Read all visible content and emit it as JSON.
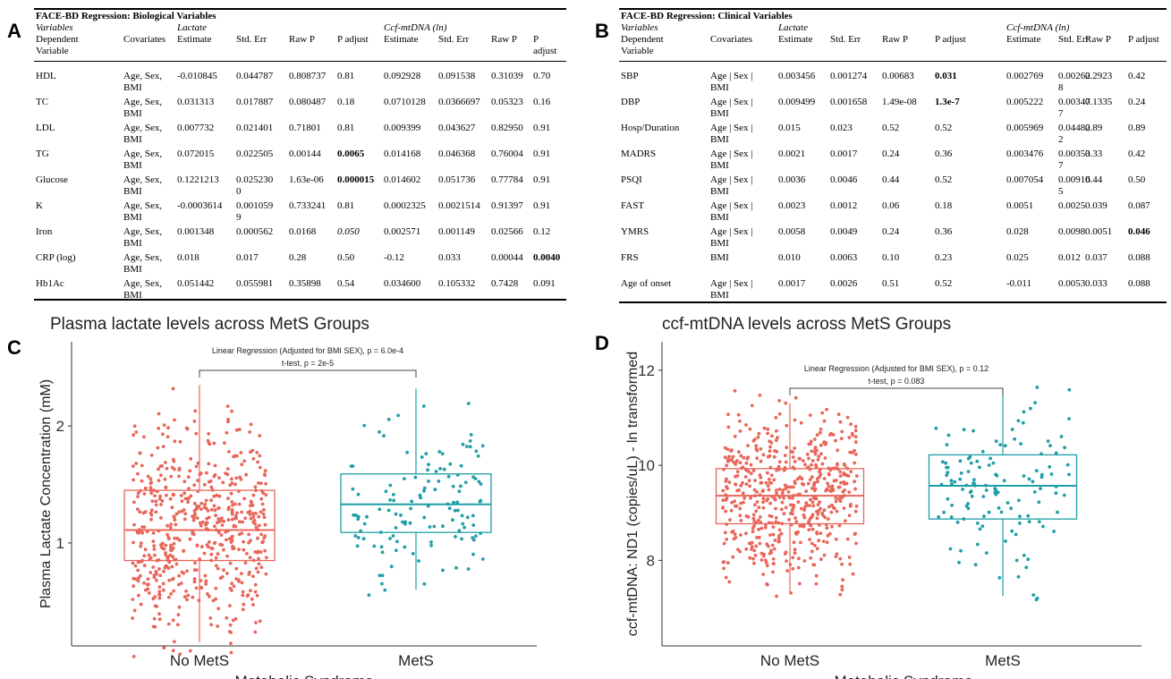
{
  "panels": [
    "A",
    "B",
    "C",
    "D"
  ],
  "tableA": {
    "title": "FACE-BD Regression: Biological Variables",
    "header": {
      "variables": "Variables",
      "dependent": [
        "Dependent",
        "Variable"
      ],
      "covariates": "Covariates",
      "group1": "Lactate",
      "group2": "Ccf-mtDNA (ln)",
      "estimate": "Estimate",
      "std_err": "Std. Err",
      "raw_p": "Raw P",
      "p_adjust": "P adjust",
      "p_adjust_split": [
        "P",
        "adjust"
      ]
    },
    "rows": [
      {
        "var": "HDL",
        "cov": [
          "Age, Sex,",
          "BMI"
        ],
        "c": [
          [
            "-0.010845"
          ],
          [
            "0.044787"
          ],
          [
            "0.808737"
          ],
          [
            "0.81"
          ],
          [
            "0.092928"
          ],
          [
            "0.091538"
          ],
          [
            "0.31039"
          ],
          [
            "0.70"
          ]
        ],
        "bold": [],
        "italic": []
      },
      {
        "var": "TC",
        "cov": [
          "Age, Sex,",
          "BMI"
        ],
        "c": [
          [
            "0.031313"
          ],
          [
            "0.017887"
          ],
          [
            "0.080487"
          ],
          [
            "0.18"
          ],
          [
            "0.0710128"
          ],
          [
            "0.0366697"
          ],
          [
            "0.05323"
          ],
          [
            "0.16"
          ]
        ],
        "bold": [],
        "italic": []
      },
      {
        "var": "LDL",
        "cov": [
          "Age, Sex,",
          "BMI"
        ],
        "c": [
          [
            "0.007732"
          ],
          [
            "0.021401"
          ],
          [
            "0.71801"
          ],
          [
            "0.81"
          ],
          [
            "0.009399"
          ],
          [
            "0.043627"
          ],
          [
            "0.82950"
          ],
          [
            "0.91"
          ]
        ],
        "bold": [],
        "italic": []
      },
      {
        "var": "TG",
        "cov": [
          "Age, Sex,",
          "BMI"
        ],
        "c": [
          [
            "0.072015"
          ],
          [
            "0.022505"
          ],
          [
            "0.00144"
          ],
          [
            "0.0065"
          ],
          [
            "0.014168"
          ],
          [
            "0.046368"
          ],
          [
            "0.76004"
          ],
          [
            "0.91"
          ]
        ],
        "bold": [
          3
        ],
        "italic": []
      },
      {
        "var": "Glucose",
        "cov": [
          "Age, Sex,",
          "BMI"
        ],
        "c": [
          [
            "0.1221213"
          ],
          [
            "0.025230",
            "0"
          ],
          [
            "1.63e-06"
          ],
          [
            "0.000015"
          ],
          [
            "0.014602"
          ],
          [
            "0.051736"
          ],
          [
            "0.77784"
          ],
          [
            "0.91"
          ]
        ],
        "bold": [
          3
        ],
        "italic": []
      },
      {
        "var": "K",
        "cov": [
          "Age, Sex,",
          "BMI"
        ],
        "c": [
          [
            "-0.0003614"
          ],
          [
            "0.001059",
            "9"
          ],
          [
            "0.733241"
          ],
          [
            "0.81"
          ],
          [
            "0.0002325"
          ],
          [
            "0.0021514"
          ],
          [
            "0.91397"
          ],
          [
            "0.91"
          ]
        ],
        "bold": [],
        "italic": []
      },
      {
        "var": "Iron",
        "cov": [
          "Age, Sex,",
          "BMI"
        ],
        "c": [
          [
            "0.001348"
          ],
          [
            "0.000562"
          ],
          [
            "0.0168"
          ],
          [
            "0.050"
          ],
          [
            "0.002571"
          ],
          [
            "0.001149"
          ],
          [
            "0.02566"
          ],
          [
            "0.12"
          ]
        ],
        "bold": [],
        "italic": [
          3
        ]
      },
      {
        "var": "CRP (log)",
        "cov": [
          "Age, Sex,",
          "BMI"
        ],
        "c": [
          [
            "0.018"
          ],
          [
            "0.017"
          ],
          [
            "0.28"
          ],
          [
            "0.50"
          ],
          [
            "-0.12"
          ],
          [
            "0.033"
          ],
          [
            "0.00044"
          ],
          [
            "0.0040"
          ]
        ],
        "bold": [
          7
        ],
        "italic": []
      },
      {
        "var": "Hb1Ac",
        "cov": [
          "Age, Sex,",
          "BMI"
        ],
        "c": [
          [
            "0.051442"
          ],
          [
            "0.055981"
          ],
          [
            "0.35898"
          ],
          [
            "0.54"
          ],
          [
            "0.034600"
          ],
          [
            "0.105332"
          ],
          [
            "0.7428"
          ],
          [
            "0.091"
          ]
        ],
        "bold": [],
        "italic": []
      }
    ]
  },
  "tableB": {
    "title": "FACE-BD Regression: Clinical Variables",
    "header": {
      "variables": "Variables",
      "dependent": [
        "Dependent",
        "Variable"
      ],
      "covariates": "Covariates",
      "group1": "Lactate",
      "group2": "Ccf-mtDNA (ln)",
      "estimate": "Estimate",
      "std_err": "Std. Err",
      "raw_p": "Raw P",
      "p_adjust": "P adjust"
    },
    "rows": [
      {
        "var": "SBP",
        "cov": [
          "Age | Sex |",
          "BMI"
        ],
        "c": [
          [
            "0.003456"
          ],
          [
            "0.001274"
          ],
          [
            "0.00683"
          ],
          [
            "0.031"
          ],
          [
            "0.002769"
          ],
          [
            "0.00262",
            "8"
          ],
          [
            "0.2923"
          ],
          [
            "0.42"
          ]
        ],
        "bold": [
          3
        ],
        "italic": []
      },
      {
        "var": "DBP",
        "cov": [
          "Age | Sex |",
          "BMI"
        ],
        "c": [
          [
            "0.009499"
          ],
          [
            "0.001658"
          ],
          [
            "1.49e-08"
          ],
          [
            "1.3e-7"
          ],
          [
            "0.005222"
          ],
          [
            "0.00347",
            "7"
          ],
          [
            "0.1335"
          ],
          [
            "0.24"
          ]
        ],
        "bold": [
          3
        ],
        "italic": []
      },
      {
        "var": "Hosp/Duration",
        "cov": [
          "Age | Sex |",
          "BMI"
        ],
        "c": [
          [
            "0.015"
          ],
          [
            "0.023"
          ],
          [
            "0.52"
          ],
          [
            "0.52"
          ],
          [
            "0.005969"
          ],
          [
            "0.04482",
            "2"
          ],
          [
            "0.89"
          ],
          [
            "0.89"
          ]
        ],
        "bold": [],
        "italic": []
      },
      {
        "var": "MADRS",
        "cov": [
          "Age | Sex |",
          "BMI"
        ],
        "c": [
          [
            "0.0021"
          ],
          [
            "0.0017"
          ],
          [
            "0.24"
          ],
          [
            "0.36"
          ],
          [
            "0.003476"
          ],
          [
            "0.00353",
            "7"
          ],
          [
            "0.33"
          ],
          [
            "0.42"
          ]
        ],
        "bold": [],
        "italic": []
      },
      {
        "var": "PSQI",
        "cov": [
          "Age | Sex |",
          "BMI"
        ],
        "c": [
          [
            "0.0036"
          ],
          [
            "0.0046"
          ],
          [
            "0.44"
          ],
          [
            "0.52"
          ],
          [
            "0.007054"
          ],
          [
            "0.00916",
            "5"
          ],
          [
            "0.44"
          ],
          [
            "0.50"
          ]
        ],
        "bold": [],
        "italic": []
      },
      {
        "var": "FAST",
        "cov": [
          "Age | Sex |",
          "BMI"
        ],
        "c": [
          [
            "0.0023"
          ],
          [
            "0.0012"
          ],
          [
            "0.06"
          ],
          [
            "0.18"
          ],
          [
            "0.0051"
          ],
          [
            "0.0025"
          ],
          [
            "0.039"
          ],
          [
            "0.087"
          ]
        ],
        "bold": [],
        "italic": []
      },
      {
        "var": "YMRS",
        "cov": [
          "Age | Sex |",
          "BMI"
        ],
        "c": [
          [
            "0.0058"
          ],
          [
            "0.0049"
          ],
          [
            "0.24"
          ],
          [
            "0.36"
          ],
          [
            "0.028"
          ],
          [
            "0.0098"
          ],
          [
            "0.0051"
          ],
          [
            "0.046"
          ]
        ],
        "bold": [
          7
        ],
        "italic": []
      },
      {
        "var": "FRS",
        "cov": [
          "BMI"
        ],
        "c": [
          [
            "0.010"
          ],
          [
            "0.0063"
          ],
          [
            "0.10"
          ],
          [
            "0.23"
          ],
          [
            "0.025"
          ],
          [
            "0.012"
          ],
          [
            "0.037"
          ],
          [
            "0.088"
          ]
        ],
        "bold": [],
        "italic": []
      },
      {
        "var": "Age of onset",
        "cov": [
          "Age | Sex |",
          "BMI"
        ],
        "c": [
          [
            "0.0017"
          ],
          [
            "0.0026"
          ],
          [
            "0.51"
          ],
          [
            "0.52"
          ],
          [
            "-0.011"
          ],
          [
            "0.0053"
          ],
          [
            "0.033"
          ],
          [
            "0.088"
          ]
        ],
        "bold": [],
        "italic": []
      }
    ]
  },
  "chart_data": [
    {
      "type": "box",
      "panel": "C",
      "title": "Plasma lactate levels across MetS Groups",
      "xlabel": "Metabolic Syndrome",
      "ylabel": "Plasma Lactate Concentration (mM)",
      "categories": [
        "No MetS",
        "MetS"
      ],
      "colors": [
        "#e8665a",
        "#1f9ea6"
      ],
      "ylim": [
        0.12,
        2.72
      ],
      "yticks": [
        1,
        2
      ],
      "boxes": [
        {
          "category": "No MetS",
          "q1": 0.85,
          "median": 1.11,
          "q3": 1.45,
          "whisker_low": 0.15,
          "whisker_high": 2.35,
          "n": 560
        },
        {
          "category": "MetS",
          "q1": 1.09,
          "median": 1.33,
          "q3": 1.59,
          "whisker_low": 0.6,
          "whisker_high": 2.32,
          "n": 130
        }
      ],
      "annotation": [
        "Linear Regression (Adjusted for BMI SEX), p = 6.0e-4",
        "t-test, p = 2e-5"
      ]
    },
    {
      "type": "box",
      "panel": "D",
      "title": "ccf-mtDNA levels across MetS Groups",
      "xlabel": "Metabolic Syndrome",
      "ylabel": "ccf-mtDNA: ND1 (copies/uL) - ln transformed",
      "categories": [
        "No MetS",
        "MetS"
      ],
      "colors": [
        "#e8665a",
        "#1f9ea6"
      ],
      "ylim": [
        6.2,
        12.6
      ],
      "yticks": [
        8,
        10,
        12
      ],
      "boxes": [
        {
          "category": "No MetS",
          "q1": 8.77,
          "median": 9.36,
          "q3": 9.93,
          "whisker_low": 7.3,
          "whisker_high": 11.3,
          "n": 560
        },
        {
          "category": "MetS",
          "q1": 8.87,
          "median": 9.57,
          "q3": 10.22,
          "whisker_low": 7.25,
          "whisker_high": 11.5,
          "n": 130
        }
      ],
      "annotation": [
        "Linear Regression (Adjusted for BMI SEX), p = 0.12",
        "t-test, p = 0.083"
      ]
    }
  ]
}
